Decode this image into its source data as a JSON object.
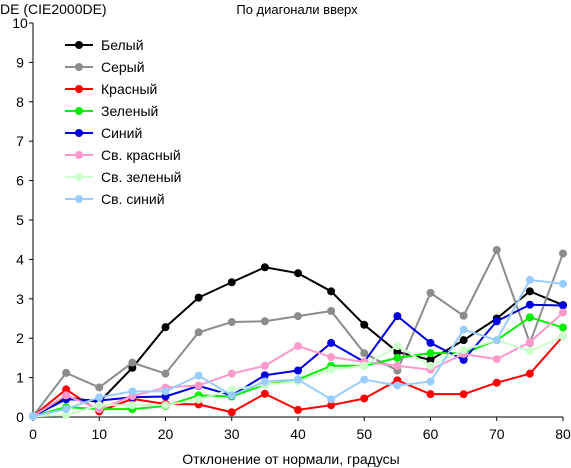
{
  "chart_data": {
    "type": "line",
    "title": "По диагонали вверх",
    "ylabel": "DE (CIE2000DE)",
    "xlabel": "Отклонение от нормали, градусы",
    "xlim": [
      0,
      80
    ],
    "ylim": [
      0,
      10
    ],
    "xticks": [
      0,
      10,
      20,
      30,
      40,
      50,
      60,
      70,
      80
    ],
    "yticks": [
      0,
      1,
      2,
      3,
      4,
      5,
      6,
      7,
      8,
      9,
      10
    ],
    "grid": false,
    "legend": "top-left",
    "x": [
      0,
      5,
      10,
      15,
      20,
      25,
      30,
      35,
      40,
      45,
      50,
      55,
      60,
      65,
      70,
      75,
      80
    ],
    "series": [
      {
        "name": "Белый",
        "color": "#000000",
        "values": [
          0.02,
          0.5,
          0.38,
          1.25,
          2.28,
          3.03,
          3.42,
          3.8,
          3.65,
          3.19,
          2.34,
          1.65,
          1.45,
          1.95,
          2.5,
          3.19,
          2.84
        ]
      },
      {
        "name": "Серый",
        "color": "#8c8c8c",
        "values": [
          0.02,
          1.12,
          0.75,
          1.38,
          1.1,
          2.15,
          2.41,
          2.43,
          2.56,
          2.69,
          1.62,
          1.18,
          3.15,
          2.57,
          4.24,
          1.88,
          4.15
        ]
      },
      {
        "name": "Красный",
        "color": "#ff0000",
        "values": [
          0.02,
          0.7,
          0.14,
          0.46,
          0.33,
          0.32,
          0.12,
          0.59,
          0.18,
          0.3,
          0.47,
          0.93,
          0.58,
          0.58,
          0.87,
          1.1,
          2.05
        ]
      },
      {
        "name": "Зеленый",
        "color": "#00ee00",
        "values": [
          0.02,
          0.25,
          0.2,
          0.2,
          0.28,
          0.55,
          0.52,
          0.82,
          0.95,
          1.3,
          1.3,
          1.5,
          1.62,
          1.62,
          1.95,
          2.53,
          2.27
        ]
      },
      {
        "name": "Синий",
        "color": "#0000e0",
        "values": [
          0.02,
          0.45,
          0.42,
          0.5,
          0.52,
          0.79,
          0.55,
          1.06,
          1.18,
          1.88,
          1.4,
          2.56,
          1.88,
          1.45,
          2.43,
          2.85,
          2.83
        ]
      },
      {
        "name": "Св. красный",
        "color": "#ff99cc",
        "values": [
          0.02,
          0.55,
          0.2,
          0.53,
          0.75,
          0.8,
          1.1,
          1.3,
          1.8,
          1.52,
          1.4,
          1.3,
          1.2,
          1.6,
          1.47,
          1.9,
          2.65
        ]
      },
      {
        "name": "Св. зеленый",
        "color": "#ccffcc",
        "values": [
          0.02,
          0.05,
          0.3,
          0.3,
          0.3,
          0.44,
          0.7,
          0.82,
          0.9,
          1.2,
          1.3,
          1.8,
          1.3,
          1.7,
          1.95,
          1.67,
          2.05
        ]
      },
      {
        "name": "Св. синий",
        "color": "#99ccff",
        "values": [
          0.02,
          0.2,
          0.5,
          0.65,
          0.65,
          1.05,
          0.55,
          0.9,
          0.95,
          0.45,
          0.95,
          0.8,
          0.9,
          2.22,
          1.95,
          3.48,
          3.38
        ]
      }
    ]
  }
}
